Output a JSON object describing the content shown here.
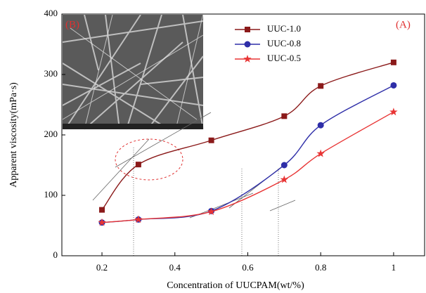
{
  "chart_data": {
    "type": "line",
    "x_label": "Concentration of UUCPAM(wt/%)",
    "y_label": "Apparent viscosity(mPa·s)",
    "annotations": [
      "(A)",
      "(B)"
    ],
    "x": [
      0.2,
      0.3,
      0.5,
      0.7,
      0.8,
      1.0
    ],
    "series": [
      {
        "name": "UUC-1.0",
        "color": "#8b1a1a",
        "marker": "square",
        "values": [
          76,
          151,
          191,
          231,
          281,
          320
        ]
      },
      {
        "name": "UUC-0.8",
        "color": "#2e2ea8",
        "marker": "circle",
        "values": [
          55,
          60,
          74,
          150,
          216,
          282
        ]
      },
      {
        "name": "UUC-0.5",
        "color": "#e83434",
        "marker": "star",
        "values": [
          55,
          60,
          73,
          126,
          169,
          238
        ]
      }
    ],
    "xlim": [
      0.09,
      1.085
    ],
    "xticks": [
      0.2,
      0.4,
      0.6,
      0.8,
      1.0
    ],
    "ylim": [
      0,
      400
    ],
    "yticks": [
      0,
      100,
      200,
      300,
      400
    ],
    "legend": "upper center"
  }
}
